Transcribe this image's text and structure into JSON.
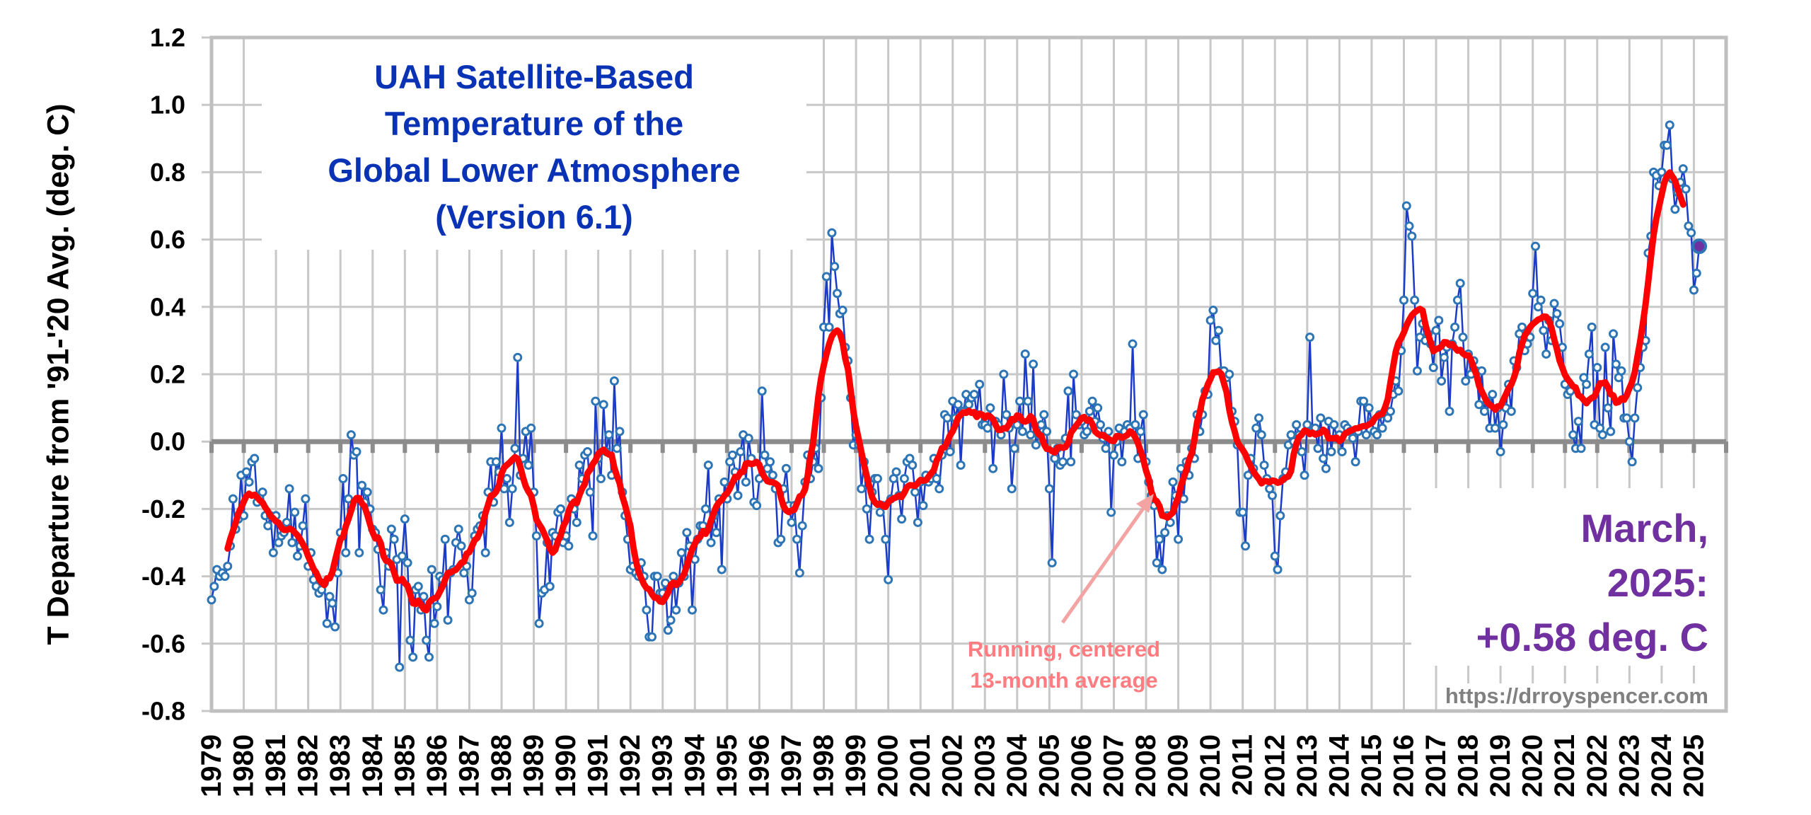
{
  "chart_data": {
    "type": "line",
    "title_lines": [
      "UAH Satellite-Based",
      "Temperature of the",
      "Global Lower Atmosphere",
      "(Version 6.1)"
    ],
    "ylabel": "T Departure from '91-'20 Avg. (deg. C)",
    "xlabel": "",
    "ylim": [
      -0.8,
      1.2
    ],
    "xlim": [
      1979,
      2026
    ],
    "y_ticks": [
      "1.2",
      "1.0",
      "0.8",
      "0.6",
      "0.4",
      "0.2",
      "0.0",
      "-0.2",
      "-0.4",
      "-0.6",
      "-0.8"
    ],
    "x_tick_labels": [
      "1979",
      "1980",
      "1981",
      "1982",
      "1983",
      "1984",
      "1985",
      "1986",
      "1987",
      "1988",
      "1989",
      "1990",
      "1991",
      "1992",
      "1993",
      "1994",
      "1995",
      "1996",
      "1997",
      "1998",
      "1999",
      "2000",
      "2001",
      "2002",
      "2003",
      "2004",
      "2005",
      "2006",
      "2007",
      "2008",
      "2009",
      "2010",
      "2011",
      "2012",
      "2013",
      "2014",
      "2015",
      "2016",
      "2017",
      "2018",
      "2019",
      "2020",
      "2021",
      "2022",
      "2023",
      "2024",
      "2025"
    ],
    "grid": true,
    "series": [
      {
        "name": "Monthly anomaly",
        "color": "#1a3cc8",
        "marker_color": "#2e75b6",
        "monthly_values": {
          "1979": [
            -0.47,
            -0.43,
            -0.38,
            -0.4,
            -0.39,
            -0.4,
            -0.37,
            -0.31,
            -0.17,
            -0.26,
            -0.23,
            -0.1
          ],
          "1980": [
            -0.22,
            -0.09,
            -0.12,
            -0.06,
            -0.05,
            -0.18,
            -0.16,
            -0.15,
            -0.22,
            -0.25,
            -0.22,
            -0.33
          ],
          "1981": [
            -0.22,
            -0.3,
            -0.28,
            -0.27,
            -0.24,
            -0.14,
            -0.3,
            -0.21,
            -0.34,
            -0.31,
            -0.25,
            -0.17
          ],
          "1982": [
            -0.37,
            -0.33,
            -0.41,
            -0.43,
            -0.45,
            -0.44,
            -0.42,
            -0.54,
            -0.46,
            -0.48,
            -0.55,
            -0.39
          ],
          "1983": [
            -0.27,
            -0.11,
            -0.33,
            -0.17,
            0.02,
            -0.04,
            -0.03,
            -0.33,
            -0.13,
            -0.18,
            -0.15,
            -0.2
          ],
          "1984": [
            -0.26,
            -0.27,
            -0.32,
            -0.44,
            -0.5,
            -0.33,
            -0.37,
            -0.26,
            -0.29,
            -0.35,
            -0.67,
            -0.34
          ],
          "1985": [
            -0.23,
            -0.36,
            -0.59,
            -0.64,
            -0.44,
            -0.43,
            -0.5,
            -0.46,
            -0.59,
            -0.64,
            -0.38,
            -0.54
          ],
          "1986": [
            -0.49,
            -0.4,
            -0.41,
            -0.29,
            -0.53,
            -0.39,
            -0.38,
            -0.3,
            -0.26,
            -0.31,
            -0.39,
            -0.37
          ],
          "1987": [
            -0.47,
            -0.45,
            -0.28,
            -0.26,
            -0.25,
            -0.22,
            -0.33,
            -0.15,
            -0.06,
            -0.18,
            -0.06,
            -0.09
          ],
          "1988": [
            0.04,
            -0.14,
            -0.11,
            -0.24,
            -0.14,
            -0.02,
            0.25,
            -0.1,
            -0.05,
            0.03,
            -0.07,
            0.04
          ],
          "1989": [
            -0.15,
            -0.28,
            -0.54,
            -0.45,
            -0.44,
            -0.3,
            -0.43,
            -0.27,
            -0.28,
            -0.21,
            -0.2,
            -0.3
          ],
          "1990": [
            -0.28,
            -0.31,
            -0.17,
            -0.2,
            -0.24,
            -0.07,
            -0.11,
            -0.04,
            -0.03,
            -0.15,
            -0.28,
            0.12
          ],
          "1991": [
            -0.05,
            -0.11,
            0.11,
            -0.03,
            0.02,
            -0.1,
            0.18,
            -0.02,
            0.03,
            -0.15,
            -0.22,
            -0.29
          ],
          "1992": [
            -0.38,
            -0.37,
            -0.39,
            -0.4,
            -0.36,
            -0.4,
            -0.5,
            -0.58,
            -0.58,
            -0.4,
            -0.4,
            -0.45
          ],
          "1993": [
            -0.45,
            -0.42,
            -0.56,
            -0.53,
            -0.4,
            -0.5,
            -0.42,
            -0.33,
            -0.4,
            -0.27,
            -0.31,
            -0.5
          ],
          "1994": [
            -0.35,
            -0.29,
            -0.25,
            -0.25,
            -0.2,
            -0.07,
            -0.3,
            -0.22,
            -0.27,
            -0.17,
            -0.38,
            -0.12
          ],
          "1995": [
            -0.17,
            -0.06,
            -0.04,
            -0.09,
            -0.16,
            -0.03,
            0.02,
            -0.12,
            0.01,
            -0.05,
            -0.18,
            -0.19
          ],
          "1996": [
            -0.11,
            0.15,
            -0.04,
            -0.08,
            -0.06,
            -0.1,
            -0.14,
            -0.3,
            -0.29,
            -0.14,
            -0.08,
            -0.19
          ],
          "1997": [
            -0.24,
            -0.19,
            -0.29,
            -0.39,
            -0.25,
            -0.12,
            -0.04,
            -0.11,
            -0.06,
            -0.02,
            -0.08,
            0.13
          ],
          "1998": [
            0.34,
            0.49,
            0.34,
            0.62,
            0.52,
            0.44,
            0.38,
            0.39,
            0.28,
            0.24,
            0.13,
            -0.01
          ],
          "1999": [
            0.02,
            -0.01,
            -0.14,
            -0.06,
            -0.2,
            -0.29,
            -0.15,
            -0.11,
            -0.11,
            -0.21,
            -0.19,
            -0.29
          ],
          "2000": [
            -0.41,
            -0.17,
            -0.11,
            -0.09,
            -0.16,
            -0.23,
            -0.11,
            -0.06,
            -0.05,
            -0.07,
            -0.15,
            -0.24
          ],
          "2001": [
            -0.12,
            -0.19,
            -0.1,
            -0.12,
            -0.11,
            -0.05,
            -0.11,
            -0.14,
            -0.04,
            0.08,
            0.07,
            -0.03
          ],
          "2002": [
            0.12,
            0.07,
            0.11,
            -0.07,
            0.09,
            0.14,
            0.11,
            0.13,
            0.14,
            0.08,
            0.17,
            0.05
          ],
          "2003": [
            0.05,
            0.04,
            0.1,
            -0.08,
            0.06,
            0.05,
            0.02,
            0.2,
            0.08,
            0.04,
            -0.14,
            -0.02
          ],
          "2004": [
            0.05,
            0.12,
            0.03,
            0.26,
            0.12,
            0.02,
            0.23,
            -0.01,
            0.02,
            0.05,
            0.08,
            0.03
          ],
          "2005": [
            -0.14,
            -0.36,
            -0.05,
            -0.02,
            -0.07,
            -0.06,
            0.01,
            0.15,
            -0.06,
            0.2,
            0.08,
            0.05
          ],
          "2006": [
            0.06,
            0.02,
            0.03,
            0.09,
            0.12,
            0.06,
            0.1,
            0.05,
            0.01,
            -0.02,
            0.03,
            -0.21
          ],
          "2007": [
            -0.04,
            0.0,
            0.04,
            -0.06,
            0.03,
            0.05,
            0.04,
            0.29,
            0.05,
            -0.05,
            0.03,
            0.08
          ],
          "2008": [
            -0.06,
            -0.12,
            -0.16,
            -0.19,
            -0.36,
            -0.29,
            -0.38,
            -0.27,
            -0.22,
            -0.24,
            -0.12,
            -0.16
          ],
          "2009": [
            -0.29,
            -0.08,
            -0.17,
            -0.06,
            -0.1,
            -0.02,
            -0.05,
            0.08,
            0.03,
            0.08,
            0.15,
            0.14
          ],
          "2010": [
            0.36,
            0.39,
            0.3,
            0.33,
            0.21,
            0.21,
            0.19,
            0.2,
            0.09,
            0.06,
            -0.01,
            -0.21
          ],
          "2011": [
            -0.21,
            -0.31,
            -0.1,
            -0.05,
            -0.08,
            0.04,
            0.07,
            0.02,
            -0.07,
            -0.11,
            -0.14,
            -0.16
          ],
          "2012": [
            -0.34,
            -0.38,
            -0.22,
            -0.11,
            -0.09,
            -0.01,
            0.02,
            0.0,
            0.05,
            0.02,
            -0.03,
            -0.1
          ],
          "2013": [
            0.05,
            0.31,
            0.03,
            0.04,
            -0.02,
            0.07,
            -0.05,
            -0.08,
            0.06,
            -0.03,
            0.05,
            0.01
          ],
          "2014": [
            0.02,
            -0.03,
            0.05,
            0.04,
            0.03,
            0.01,
            -0.06,
            0.03,
            0.12,
            0.12,
            0.02,
            0.1
          ],
          "2015": [
            0.06,
            0.03,
            0.02,
            0.08,
            0.04,
            0.09,
            0.07,
            0.09,
            0.14,
            0.18,
            0.15,
            0.27
          ],
          "2016": [
            0.42,
            0.7,
            0.64,
            0.61,
            0.42,
            0.21,
            0.31,
            0.35,
            0.3,
            0.32,
            0.29,
            0.22
          ],
          "2017": [
            0.33,
            0.36,
            0.18,
            0.25,
            0.28,
            0.09,
            0.29,
            0.34,
            0.42,
            0.47,
            0.31,
            0.18
          ],
          "2018": [
            0.26,
            0.2,
            0.24,
            0.21,
            0.11,
            0.21,
            0.09,
            0.12,
            0.04,
            0.14,
            0.04,
            0.1
          ],
          "2019": [
            -0.03,
            0.05,
            0.1,
            0.17,
            0.09,
            0.24,
            0.22,
            0.32,
            0.34,
            0.27,
            0.29,
            0.31
          ],
          "2020": [
            0.44,
            0.58,
            0.4,
            0.42,
            0.33,
            0.26,
            0.36,
            0.3,
            0.41,
            0.38,
            0.35,
            0.28
          ],
          "2021": [
            0.17,
            0.14,
            0.15,
            0.02,
            -0.02,
            0.06,
            -0.02,
            0.19,
            0.17,
            0.26,
            0.34,
            0.05
          ],
          "2022": [
            0.22,
            0.04,
            0.02,
            0.28,
            0.1,
            0.03,
            0.32,
            0.23,
            0.19,
            0.21,
            0.07,
            0.07
          ],
          "2023": [
            0.0,
            -0.06,
            0.07,
            0.16,
            0.22,
            0.28,
            0.3,
            0.56,
            0.61,
            0.8,
            0.79,
            0.76
          ],
          "2024": [
            0.8,
            0.88,
            0.88,
            0.94,
            0.78,
            0.69,
            0.74,
            0.77,
            0.81,
            0.75,
            0.64,
            0.62
          ],
          "2025": [
            0.45,
            0.5,
            0.58
          ]
        }
      },
      {
        "name": "Running, centered 13-month average",
        "color": "#ff0000",
        "window_months": 13
      }
    ],
    "annotation": {
      "lines": [
        "Running, centered",
        "13-month average"
      ],
      "color": "#ff7c80"
    },
    "callout": {
      "lines": [
        "March,",
        "2025:",
        "+0.58 deg. C"
      ],
      "color": "#7030a0"
    },
    "latest": {
      "label": "March, 2025",
      "value": 0.58
    },
    "source": "https://drroyspencer.com"
  }
}
